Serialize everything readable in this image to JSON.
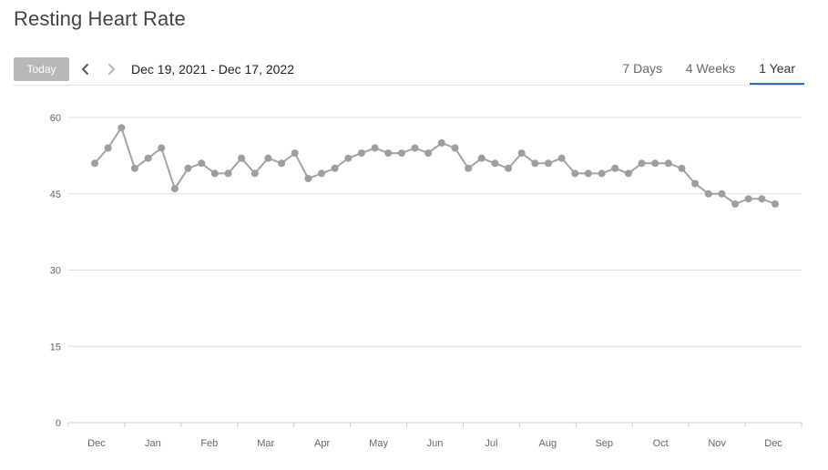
{
  "page": {
    "title": "Resting Heart Rate"
  },
  "toolbar": {
    "today_label": "Today",
    "date_range": "Dec 19, 2021 - Dec 17, 2022",
    "tabs": [
      {
        "label": "7 Days",
        "active": false
      },
      {
        "label": "4 Weeks",
        "active": false
      },
      {
        "label": "1 Year",
        "active": true
      }
    ]
  },
  "colors": {
    "line": "#a3a3a3",
    "point": "#9e9e9e",
    "gridline": "#dddddd",
    "active_tab_underline": "#2a6bc2"
  },
  "chart_data": {
    "type": "line",
    "title": "",
    "xlabel": "",
    "ylabel": "",
    "ylim": [
      0,
      60
    ],
    "y_ticks": [
      "0",
      "15",
      "30",
      "45",
      "60"
    ],
    "grid": true,
    "x_axis": "weekly points, labeled by month",
    "month_labels": [
      "Dec",
      "Jan",
      "Feb",
      "Mar",
      "Apr",
      "May",
      "Jun",
      "Jul",
      "Aug",
      "Sep",
      "Oct",
      "Nov",
      "Dec"
    ],
    "series": [
      {
        "values": [
          51,
          54,
          58,
          50,
          52,
          54,
          46,
          50,
          51,
          49,
          49,
          52,
          49,
          52,
          51,
          53,
          48,
          49,
          50,
          52,
          53,
          54,
          53,
          53,
          54,
          53,
          55,
          54,
          50,
          52,
          51,
          50,
          53,
          51,
          51,
          52,
          49,
          49,
          49,
          50,
          49,
          51,
          51,
          51,
          50,
          47,
          45,
          45,
          43,
          44,
          44,
          43
        ]
      }
    ]
  }
}
